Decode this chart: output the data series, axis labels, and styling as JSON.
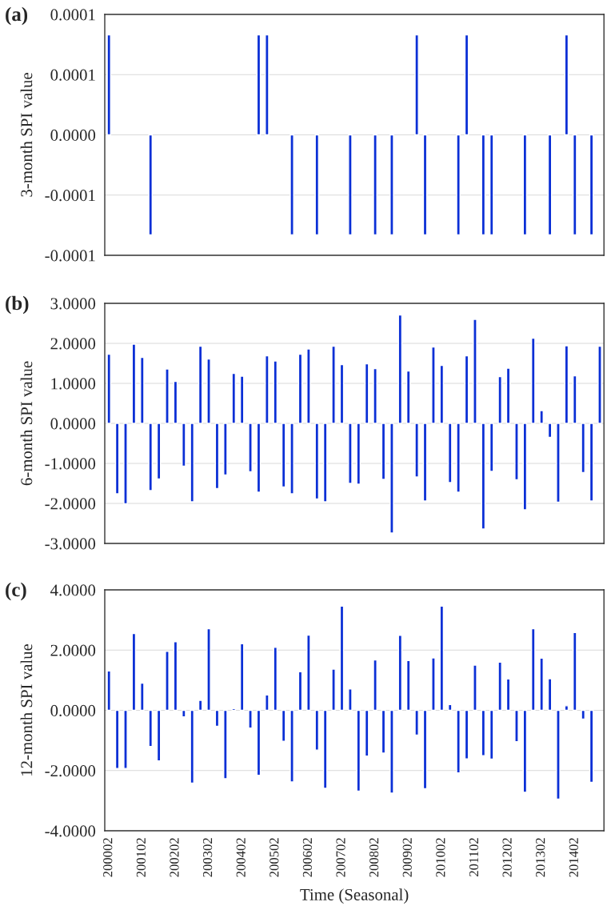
{
  "chart_data": [
    {
      "type": "bar",
      "title": "(a)",
      "ylabel": "3-month SPI value",
      "tick_labels": "y",
      "grid": "y",
      "categories": [
        "200002",
        null,
        null,
        null,
        "200102",
        null,
        null,
        null,
        "200202",
        null,
        null,
        null,
        "200302",
        null,
        null,
        null,
        "200402",
        null,
        null,
        null,
        "200502",
        null,
        null,
        null,
        "200602",
        null,
        null,
        null,
        "200702",
        null,
        null,
        null,
        "200802",
        null,
        null,
        null,
        "200902",
        null,
        null,
        null,
        "201002",
        null,
        null,
        null,
        "201102",
        null,
        null,
        null,
        "201202",
        null,
        null,
        null,
        "201302",
        null,
        null,
        null,
        "201402",
        null,
        null,
        null
      ],
      "series": [
        {
          "color": "#0a2fd6",
          "values": [
            8.3e-05,
            null,
            null,
            null,
            null,
            -8.3e-05,
            null,
            null,
            null,
            null,
            null,
            null,
            null,
            null,
            null,
            null,
            null,
            null,
            8.3e-05,
            8.3e-05,
            null,
            null,
            -8.3e-05,
            null,
            null,
            -8.3e-05,
            null,
            null,
            null,
            -8.3e-05,
            null,
            null,
            -8.3e-05,
            null,
            -8.3e-05,
            null,
            null,
            8.3e-05,
            -8.3e-05,
            null,
            null,
            null,
            -8.3e-05,
            8.3e-05,
            null,
            -8.3e-05,
            -8.3e-05,
            null,
            null,
            null,
            -8.3e-05,
            null,
            null,
            -8.3e-05,
            null,
            8.3e-05,
            -8.3e-05,
            null,
            -8.3e-05,
            null
          ]
        }
      ],
      "ylim": [
        -0.0001,
        0.0001
      ],
      "yticks": [
        {
          "value": -0.0001,
          "label": "-0.0001"
        },
        {
          "value": -5e-05,
          "label": "-0.0001"
        },
        {
          "value": 0,
          "label": "0.0000"
        },
        {
          "value": 5e-05,
          "label": "0.0001"
        },
        {
          "value": 0.0001,
          "label": "0.0001"
        }
      ]
    },
    {
      "type": "bar",
      "title": "(b)",
      "ylabel": "6-month SPI value",
      "tick_labels": "y",
      "grid": "y",
      "categories": [
        "200002",
        null,
        null,
        null,
        "200102",
        null,
        null,
        null,
        "200202",
        null,
        null,
        null,
        "200302",
        null,
        null,
        null,
        "200402",
        null,
        null,
        null,
        "200502",
        null,
        null,
        null,
        "200602",
        null,
        null,
        null,
        "200702",
        null,
        null,
        null,
        "200802",
        null,
        null,
        null,
        "200902",
        null,
        null,
        null,
        "201002",
        null,
        null,
        null,
        "201102",
        null,
        null,
        null,
        "201202",
        null,
        null,
        null,
        "201302",
        null,
        null,
        null,
        "201402",
        null,
        null,
        null
      ],
      "series": [
        {
          "color": "#0a2fd6",
          "values": [
            1.73,
            -1.76,
            -2.01,
            1.98,
            1.65,
            -1.68,
            -1.39,
            1.36,
            1.05,
            -1.07,
            -1.96,
            1.93,
            1.61,
            -1.63,
            -1.29,
            1.25,
            1.18,
            -1.21,
            -1.72,
            1.69,
            1.56,
            -1.59,
            -1.76,
            1.73,
            1.86,
            -1.89,
            -1.96,
            1.93,
            1.47,
            -1.5,
            -1.52,
            1.49,
            1.37,
            -1.4,
            -2.74,
            2.71,
            1.31,
            -1.34,
            -1.94,
            1.91,
            1.45,
            -1.48,
            -1.72,
            1.69,
            2.6,
            -2.64,
            -1.2,
            1.17,
            1.38,
            -1.41,
            -2.16,
            2.13,
            0.32,
            -0.35,
            -1.97,
            1.94,
            1.19,
            -1.23,
            -1.94,
            1.93
          ]
        }
      ],
      "ylim": [
        -3,
        3
      ],
      "yticks": [
        {
          "value": -3,
          "label": "-3.0000"
        },
        {
          "value": -2,
          "label": "-2.0000"
        },
        {
          "value": -1,
          "label": "-1.0000"
        },
        {
          "value": 0,
          "label": "0.0000"
        },
        {
          "value": 1,
          "label": "1.0000"
        },
        {
          "value": 2,
          "label": "2.0000"
        },
        {
          "value": 3,
          "label": "3.0000"
        }
      ]
    },
    {
      "type": "bar",
      "title": "(c)",
      "ylabel": "12-month SPI value",
      "xlabel": "Time (Seasonal)",
      "grid": "y",
      "categories": [
        "200002",
        null,
        null,
        null,
        "200102",
        null,
        null,
        null,
        "200202",
        null,
        null,
        null,
        "200302",
        null,
        null,
        null,
        "200402",
        null,
        null,
        null,
        "200502",
        null,
        null,
        null,
        "200602",
        null,
        null,
        null,
        "200702",
        null,
        null,
        null,
        "200802",
        null,
        null,
        null,
        "200902",
        null,
        null,
        null,
        "201002",
        null,
        null,
        null,
        "201102",
        null,
        null,
        null,
        "201202",
        null,
        null,
        null,
        "201302",
        null,
        null,
        null,
        "201402",
        null,
        null,
        null
      ],
      "series": [
        {
          "color": "#0a2fd6",
          "values": [
            1.31,
            -1.93,
            -1.93,
            2.55,
            0.9,
            -1.2,
            -1.68,
            1.96,
            2.28,
            -0.22,
            -2.42,
            0.33,
            2.71,
            -0.53,
            -2.27,
            0.06,
            2.21,
            -0.59,
            -2.16,
            0.51,
            2.09,
            -1.03,
            -2.38,
            1.28,
            2.5,
            -1.32,
            -2.59,
            1.37,
            3.46,
            0.71,
            -2.68,
            -1.52,
            1.67,
            -1.42,
            -2.75,
            2.49,
            1.65,
            -0.82,
            -2.6,
            1.74,
            3.46,
            0.19,
            -2.08,
            -1.61,
            1.5,
            -1.51,
            -1.62,
            1.6,
            1.04,
            -1.04,
            -2.72,
            2.71,
            1.73,
            1.05,
            -2.95,
            0.15,
            2.58,
            -0.29,
            -2.39,
            null
          ]
        }
      ],
      "ylim": [
        -4,
        4
      ],
      "yticks": [
        {
          "value": -4,
          "label": "-4.0000"
        },
        {
          "value": -2,
          "label": "-2.0000"
        },
        {
          "value": 0,
          "label": "0.0000"
        },
        {
          "value": 2,
          "label": "2.0000"
        },
        {
          "value": 4,
          "label": "4.0000"
        }
      ]
    }
  ]
}
